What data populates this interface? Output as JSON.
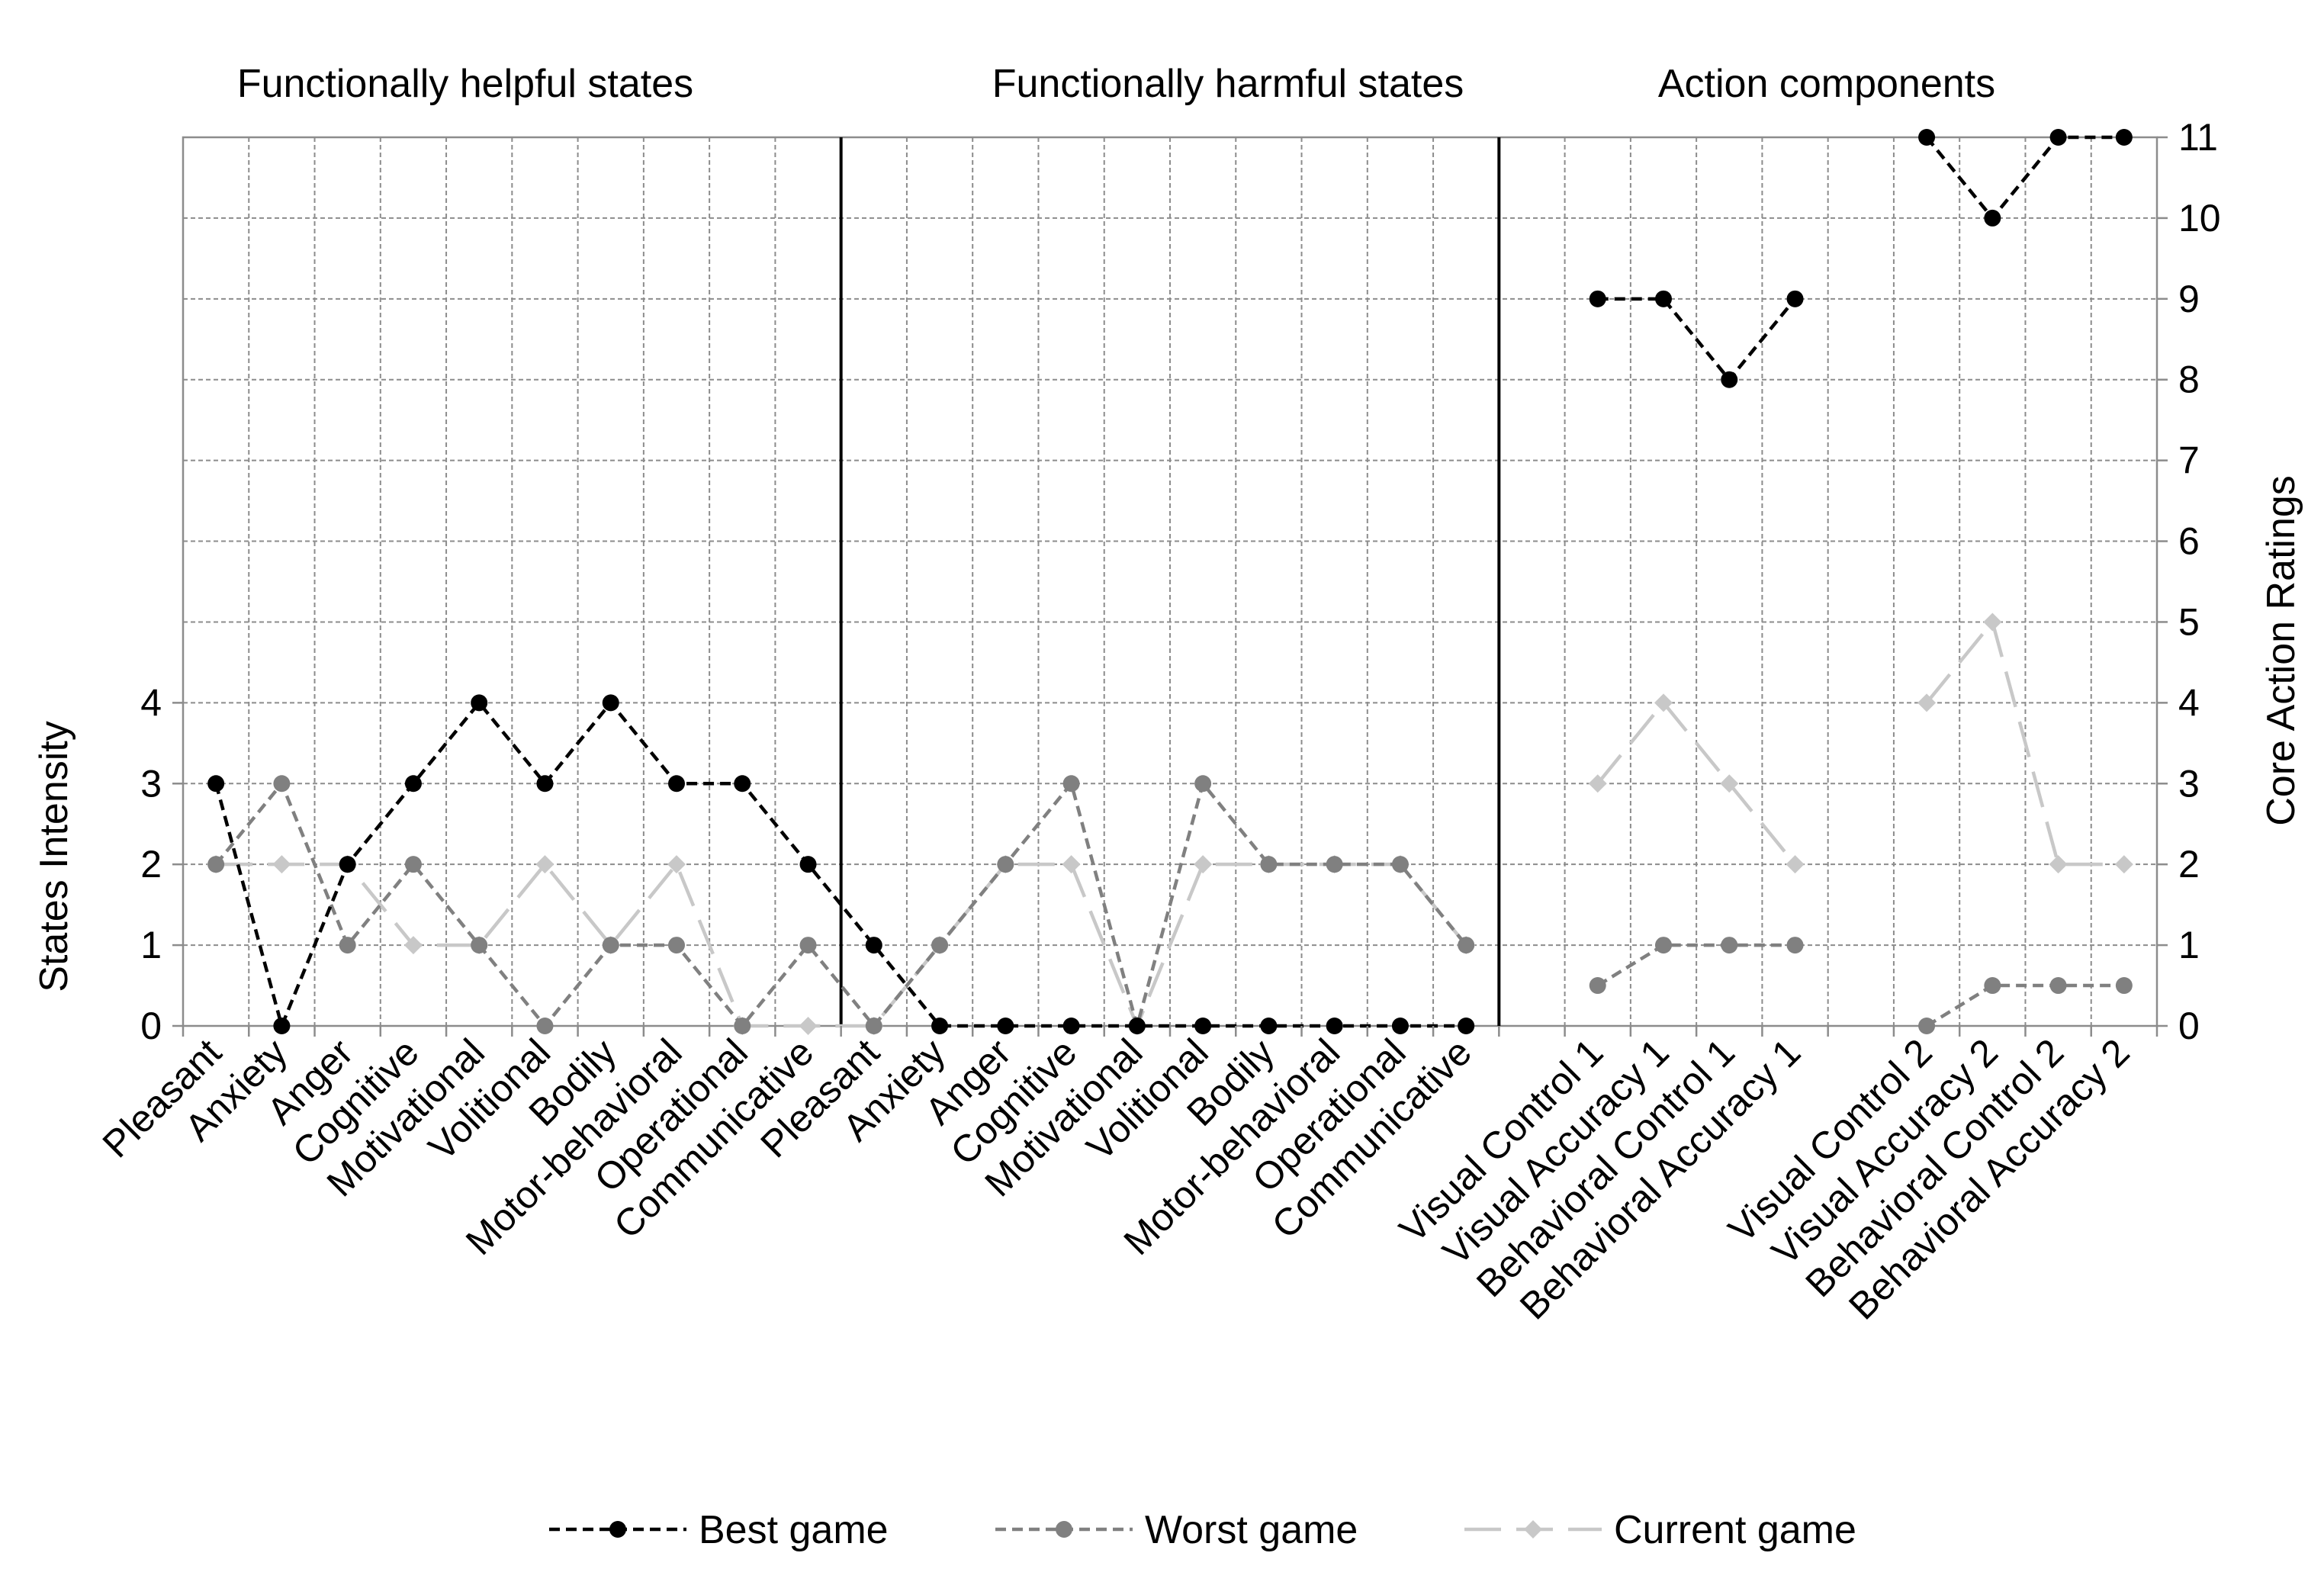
{
  "chart_data": {
    "type": "line",
    "sections": [
      "Functionally helpful states",
      "Functionally harmful states",
      "Action components"
    ],
    "categories": [
      "Pleasant",
      "Anxiety",
      "Anger",
      "Cognitive",
      "Motivational",
      "Volitional",
      "Bodily",
      "Motor-behavioral",
      "Operational",
      "Communicative",
      "Pleasant",
      "Anxiety",
      "Anger",
      "Cognitive",
      "Motivational",
      "Volitional",
      "Bodily",
      "Motor-behavioral",
      "Operational",
      "Communicative",
      "",
      "Visual Control 1",
      "Visual Accuracy 1",
      "Behavioral Control 1",
      "Behavioral Accuracy 1",
      "",
      "Visual Control 2",
      "Visual Accuracy 2",
      "Behavioral Control 2",
      "Behavioral Accuracy 2"
    ],
    "y_left": {
      "label": "States Intensity",
      "ticks": [
        0,
        1,
        2,
        3,
        4
      ]
    },
    "y_right": {
      "label": "Core Action Ratings",
      "range": [
        0,
        11
      ],
      "ticks": [
        0,
        1,
        2,
        3,
        4,
        5,
        6,
        7,
        8,
        9,
        10,
        11
      ]
    },
    "series": [
      {
        "name": "Best game",
        "color": "#000000",
        "marker": "circle",
        "dash": "dashed",
        "segments": [
          [
            [
              0,
              3
            ],
            [
              1,
              0
            ],
            [
              2,
              2
            ],
            [
              3,
              3
            ],
            [
              4,
              4
            ],
            [
              5,
              3
            ],
            [
              6,
              4
            ],
            [
              7,
              3
            ],
            [
              8,
              3
            ],
            [
              9,
              2
            ],
            [
              10,
              1
            ],
            [
              11,
              0
            ],
            [
              12,
              0
            ],
            [
              13,
              0
            ],
            [
              14,
              0
            ],
            [
              15,
              0
            ],
            [
              16,
              0
            ],
            [
              17,
              0
            ],
            [
              18,
              0
            ],
            [
              19,
              0
            ]
          ],
          [
            [
              21,
              9
            ],
            [
              22,
              9
            ],
            [
              23,
              8
            ],
            [
              24,
              9
            ]
          ],
          [
            [
              26,
              11
            ],
            [
              27,
              10
            ],
            [
              28,
              11
            ],
            [
              29,
              11
            ]
          ]
        ]
      },
      {
        "name": "Worst game",
        "color": "#808080",
        "marker": "circle",
        "dash": "dashed",
        "segments": [
          [
            [
              0,
              2
            ],
            [
              1,
              3
            ],
            [
              2,
              1
            ],
            [
              3,
              2
            ],
            [
              4,
              1
            ],
            [
              5,
              0
            ],
            [
              6,
              1
            ],
            [
              7,
              1
            ],
            [
              8,
              0
            ],
            [
              9,
              1
            ],
            [
              10,
              0
            ],
            [
              11,
              1
            ],
            [
              12,
              2
            ],
            [
              13,
              3
            ],
            [
              14,
              0
            ],
            [
              15,
              3
            ],
            [
              16,
              2
            ],
            [
              17,
              2
            ],
            [
              18,
              2
            ],
            [
              19,
              1
            ]
          ],
          [
            [
              21,
              0.5
            ],
            [
              22,
              1
            ],
            [
              23,
              1
            ],
            [
              24,
              1
            ]
          ],
          [
            [
              26,
              0
            ],
            [
              27,
              0.5
            ],
            [
              28,
              0.5
            ],
            [
              29,
              0.5
            ]
          ]
        ]
      },
      {
        "name": "Current game",
        "color": "#c8c8c8",
        "marker": "diamond",
        "dash": "long-dash",
        "segments": [
          [
            [
              0,
              2
            ],
            [
              1,
              2
            ],
            [
              2,
              2
            ],
            [
              3,
              1
            ],
            [
              4,
              1
            ],
            [
              5,
              2
            ],
            [
              6,
              1
            ],
            [
              7,
              2
            ],
            [
              8,
              0
            ],
            [
              9,
              0
            ],
            [
              10,
              0
            ],
            [
              11,
              1
            ],
            [
              12,
              2
            ],
            [
              13,
              2
            ],
            [
              14,
              0
            ],
            [
              15,
              2
            ],
            [
              16,
              2
            ],
            [
              17,
              2
            ],
            [
              18,
              2
            ],
            [
              19,
              1
            ]
          ],
          [
            [
              21,
              3
            ],
            [
              22,
              4
            ],
            [
              23,
              3
            ],
            [
              24,
              2
            ]
          ],
          [
            [
              26,
              4
            ],
            [
              27,
              5
            ],
            [
              28,
              2
            ],
            [
              29,
              2
            ]
          ]
        ]
      }
    ],
    "legend": [
      "Best game",
      "Worst game",
      "Current game"
    ],
    "legend_position": "bottom",
    "grid": true
  }
}
